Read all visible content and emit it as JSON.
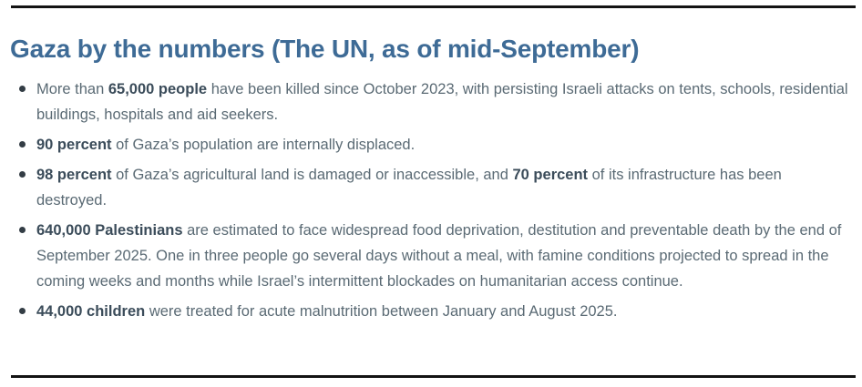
{
  "colors": {
    "background": "#ffffff",
    "rule": "#131313",
    "heading": "#3e6b96",
    "body_text": "#5a6a74",
    "bold_text": "#3b4c5a",
    "bullet_dot": "#333d45"
  },
  "heading": {
    "text": "Gaza by the numbers (The UN, as of mid-September)"
  },
  "bullets": [
    {
      "segments": [
        {
          "text": "More than ",
          "bold": false
        },
        {
          "text": "65,000 people",
          "bold": true
        },
        {
          "text": " have been killed since October 2023, with persisting Israeli attacks on tents, schools, residential buildings, hospitals and aid seekers.",
          "bold": false
        }
      ]
    },
    {
      "segments": [
        {
          "text": "90 percent",
          "bold": true
        },
        {
          "text": " of Gaza’s population are internally displaced.",
          "bold": false
        }
      ]
    },
    {
      "segments": [
        {
          "text": "98 percent",
          "bold": true
        },
        {
          "text": " of Gaza’s agricultural land is damaged or inaccessible, and ",
          "bold": false
        },
        {
          "text": "70 percent",
          "bold": true
        },
        {
          "text": " of its infrastructure has been destroyed.",
          "bold": false
        }
      ]
    },
    {
      "segments": [
        {
          "text": "640,000 Palestinians",
          "bold": true
        },
        {
          "text": " are estimated to face widespread food deprivation, destitution and preventable death by the end of September 2025. One in three people go several days without a meal, with famine conditions projected to spread in the coming weeks and months while Israel’s intermittent blockades on humanitarian access continue.",
          "bold": false
        }
      ]
    },
    {
      "segments": [
        {
          "text": "44,000 children",
          "bold": true
        },
        {
          "text": " were treated for acute malnutrition between January and August 2025.",
          "bold": false
        }
      ]
    }
  ]
}
